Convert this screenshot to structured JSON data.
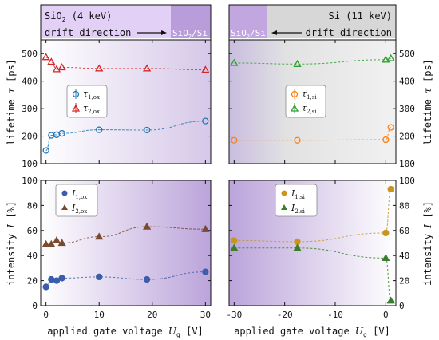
{
  "header": {
    "left_material": "SiO",
    "left_sub": "2",
    "left_energy": "(4 keV)",
    "left_drift": "drift direction",
    "left_interface": "SiO",
    "left_interface_sub": "2",
    "left_interface_tail": "/Si",
    "right_material": "Si (11 keV)",
    "right_drift": "drift direction",
    "right_interface": "SiO",
    "right_interface_sub": "2",
    "right_interface_tail": "/Si"
  },
  "axes": {
    "top_ylabel_text": "lifetime ",
    "top_ylabel_sym": "τ",
    "top_ylabel_unit": " [ps]",
    "bottom_ylabel_text": "intensity ",
    "bottom_ylabel_sym": "I",
    "bottom_ylabel_unit": " [%]",
    "xlabel_text": "applied gate voltage ",
    "xlabel_sym": "U",
    "xlabel_sub": "g",
    "xlabel_unit": " [V]"
  },
  "legends": {
    "tl": [
      {
        "sym": "τ",
        "sub": "1,ox"
      },
      {
        "sym": "τ",
        "sub": "2,ox"
      }
    ],
    "tr": [
      {
        "sym": "τ",
        "sub": "1,si"
      },
      {
        "sym": "τ",
        "sub": "2,si"
      }
    ],
    "bl": [
      {
        "sym": "I",
        "sub": "1,ox"
      },
      {
        "sym": "I",
        "sub": "2,ox"
      }
    ],
    "br": [
      {
        "sym": "I",
        "sub": "1,si"
      },
      {
        "sym": "I",
        "sub": "2,si"
      }
    ]
  },
  "colors": {
    "tau1": "#1f77b4",
    "tau2": "#d62728",
    "tau1_si": "#ff7f0e",
    "tau2_si": "#2ca02c",
    "I1_ox": "#3b5dab",
    "I2_ox": "#7b4a2e",
    "I1_si": "#c8961e",
    "I2_si": "#3a7d2c",
    "ox_bg": "#dcc8f0",
    "ox_interface": "#b48ed8",
    "si_bg": "#d6d6d6",
    "si_interface": "#b48ed8"
  },
  "chart_data": [
    {
      "type": "scatter",
      "panel": "top-left",
      "xlim": [
        -1,
        31
      ],
      "ylim": [
        100,
        550
      ],
      "yticks": [
        100,
        200,
        300,
        400,
        500
      ],
      "xticks": [
        0,
        10,
        20,
        30
      ],
      "series": [
        {
          "name": "τ1,ox",
          "x": [
            0,
            1,
            2,
            3,
            10,
            19,
            30
          ],
          "y": [
            148,
            203,
            205,
            210,
            223,
            222,
            255
          ],
          "marker": "circle"
        },
        {
          "name": "τ2,ox",
          "x": [
            0,
            1,
            2,
            3,
            10,
            19,
            30
          ],
          "y": [
            487,
            470,
            443,
            450,
            446,
            446,
            441
          ],
          "marker": "triangle"
        }
      ]
    },
    {
      "type": "scatter",
      "panel": "top-right",
      "xlim": [
        -31,
        2
      ],
      "ylim": [
        100,
        550
      ],
      "yticks": [
        100,
        200,
        300,
        400,
        500
      ],
      "xticks": [
        -30,
        -20,
        -10,
        0
      ],
      "series": [
        {
          "name": "τ1,si",
          "x": [
            -30,
            -17.5,
            0,
            1
          ],
          "y": [
            185,
            185,
            187,
            232
          ],
          "marker": "circle"
        },
        {
          "name": "τ2,si",
          "x": [
            -30,
            -17.5,
            0,
            1
          ],
          "y": [
            466,
            462,
            478,
            483
          ],
          "marker": "triangle"
        }
      ]
    },
    {
      "type": "scatter",
      "panel": "bottom-left",
      "xlim": [
        -1,
        31
      ],
      "ylim": [
        0,
        100
      ],
      "yticks": [
        0,
        20,
        40,
        60,
        80,
        100
      ],
      "xticks": [
        0,
        10,
        20,
        30
      ],
      "series": [
        {
          "name": "I1,ox",
          "x": [
            0,
            1,
            2,
            3,
            10,
            19,
            30
          ],
          "y": [
            15,
            21,
            20,
            22,
            23,
            21,
            27
          ],
          "marker": "circle"
        },
        {
          "name": "I2,ox",
          "x": [
            0,
            1,
            2,
            3,
            10,
            19,
            30
          ],
          "y": [
            49,
            49,
            52,
            50,
            55,
            63,
            61
          ],
          "marker": "triangle"
        }
      ]
    },
    {
      "type": "scatter",
      "panel": "bottom-right",
      "xlim": [
        -31,
        2
      ],
      "ylim": [
        0,
        100
      ],
      "yticks": [
        0,
        20,
        40,
        60,
        80,
        100
      ],
      "xticks": [
        -30,
        -20,
        -10,
        0
      ],
      "series": [
        {
          "name": "I1,si",
          "x": [
            -30,
            -17.5,
            0,
            1
          ],
          "y": [
            52,
            51,
            58,
            93
          ],
          "marker": "circle"
        },
        {
          "name": "I2,si",
          "x": [
            -30,
            -17.5,
            0,
            1
          ],
          "y": [
            46,
            46,
            38,
            4
          ],
          "marker": "triangle"
        }
      ]
    }
  ]
}
